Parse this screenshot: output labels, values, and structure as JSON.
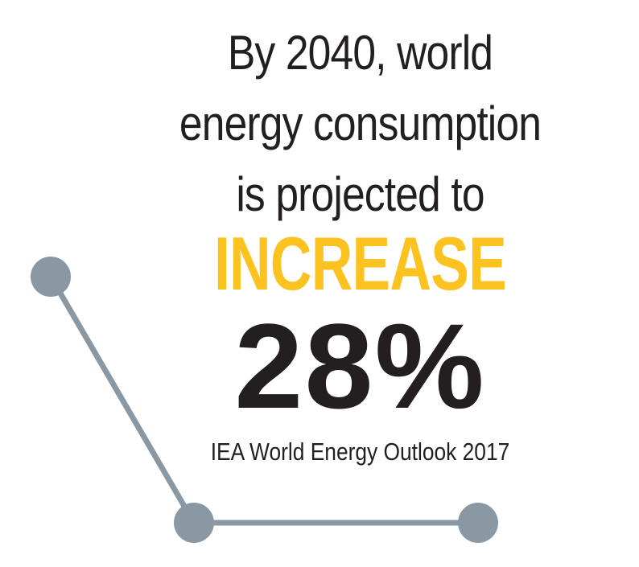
{
  "headline": {
    "line1": "By 2040, world",
    "line2": "energy consumption",
    "line3": "is projected to"
  },
  "highlight": "INCREASE",
  "figure": "28%",
  "source": "IEA World Energy Outlook 2017",
  "colors": {
    "text": "#231f20",
    "accent": "#fcc21f",
    "line": "#8a98a3"
  }
}
